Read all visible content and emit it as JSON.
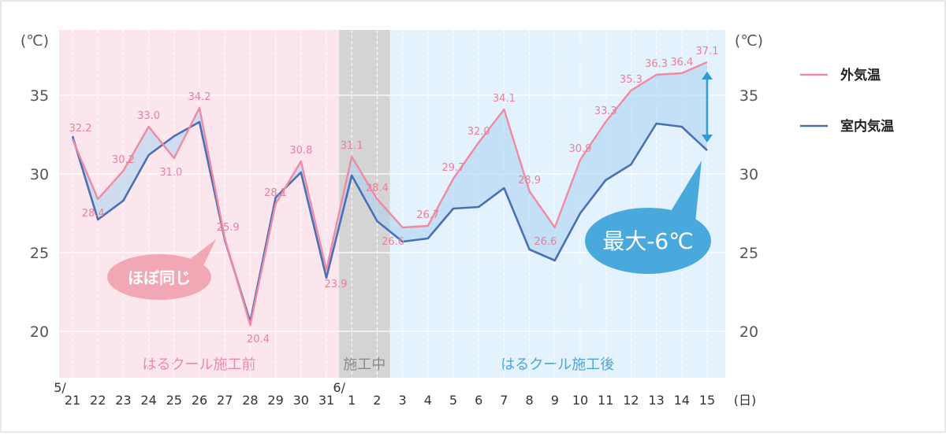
{
  "chart_data": {
    "type": "line",
    "x": [
      "21",
      "22",
      "23",
      "24",
      "25",
      "26",
      "27",
      "28",
      "29",
      "30",
      "31",
      "1",
      "2",
      "3",
      "4",
      "5",
      "6",
      "7",
      "8",
      "9",
      "10",
      "11",
      "12",
      "13",
      "14",
      "15"
    ],
    "month_markers": [
      {
        "index": 0,
        "label": "5/"
      },
      {
        "index": 11,
        "label": "6/"
      }
    ],
    "x_unit": "(日)",
    "y_unit_left": "(℃)",
    "y_unit_right": "(℃)",
    "yticks": [
      20,
      25,
      30,
      35
    ],
    "ylim": [
      17,
      39
    ],
    "series": [
      {
        "name": "外気温",
        "color": "#f08aa3",
        "values": [
          32.2,
          28.4,
          30.2,
          33.0,
          31.0,
          34.2,
          25.9,
          20.4,
          28.1,
          30.8,
          23.9,
          31.1,
          28.4,
          26.6,
          26.7,
          29.7,
          32.0,
          34.1,
          28.9,
          26.6,
          30.9,
          33.3,
          35.3,
          36.3,
          36.4,
          37.1
        ],
        "labels": [
          "32.2",
          "28.4",
          "30.2",
          "33.0",
          "31.0",
          "34.2",
          "25.9",
          "20.4",
          "28.1",
          "30.8",
          "23.9",
          "31.1",
          "28.4",
          "26.6",
          "26.7",
          "29.7",
          "32.0",
          "34.1",
          "28.9",
          "26.6",
          "30.9",
          "33.3",
          "35.3",
          "36.3",
          "36.4",
          "37.1"
        ]
      },
      {
        "name": "室内気温",
        "color": "#4a6fb5",
        "values": [
          32.4,
          27.1,
          28.3,
          31.2,
          32.4,
          33.3,
          25.8,
          20.6,
          28.5,
          30.1,
          23.4,
          29.9,
          27.0,
          25.7,
          25.9,
          27.8,
          27.9,
          29.1,
          25.2,
          24.5,
          27.5,
          29.6,
          30.6,
          33.2,
          33.0,
          31.5
        ]
      }
    ],
    "regions": [
      {
        "label": "はるクール施工前",
        "from": 0,
        "to": 10,
        "color": "#fce6ee",
        "text_color": "#ec8aa3"
      },
      {
        "label": "施工中",
        "from": 11,
        "to": 12,
        "color": "#d4d4d4",
        "text_color": "#8a8a8a"
      },
      {
        "label": "はるクール施工後",
        "from": 13,
        "to": 25,
        "color": "#e3f2fc",
        "text_color": "#4aa5d9"
      }
    ],
    "annotations": [
      {
        "text": "ほぼ同じ",
        "color": "#f2a7b4"
      },
      {
        "text": "最大-6℃",
        "color": "#49a9dc"
      }
    ],
    "legend_placement": "right",
    "grid": true
  }
}
